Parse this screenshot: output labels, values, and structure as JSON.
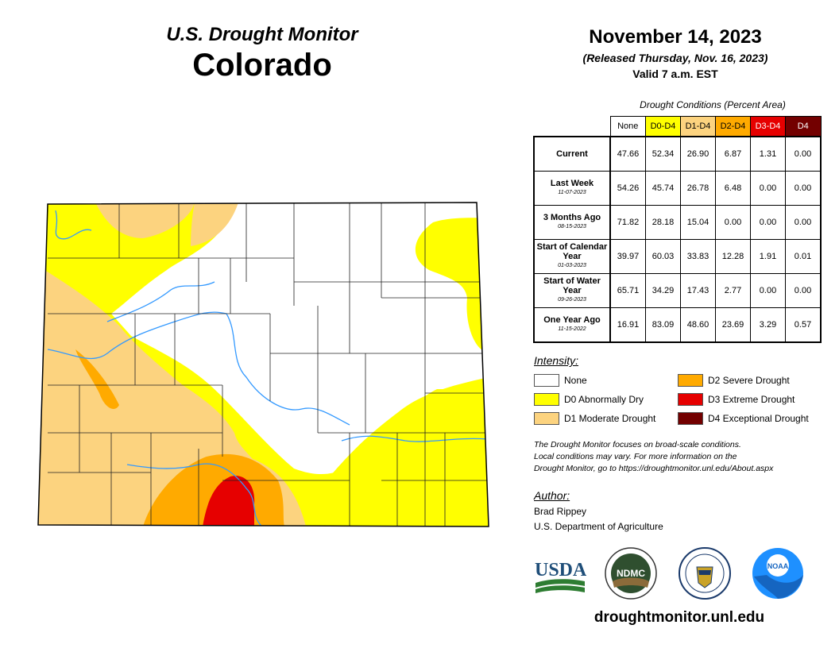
{
  "header": {
    "subtitle": "U.S. Drought Monitor",
    "state": "Colorado",
    "date": "November 14, 2023",
    "released": "(Released Thursday, Nov. 16, 2023)",
    "valid": "Valid 7 a.m. EST"
  },
  "table": {
    "caption": "Drought Conditions (Percent Area)",
    "columns": [
      "None",
      "D0-D4",
      "D1-D4",
      "D2-D4",
      "D3-D4",
      "D4"
    ],
    "column_colors": [
      "#ffffff",
      "#ffff00",
      "#fcd37f",
      "#ffaa00",
      "#e60000",
      "#730000"
    ],
    "column_text_colors": [
      "#000000",
      "#000000",
      "#000000",
      "#000000",
      "#ffffff",
      "#ffffff"
    ],
    "rows": [
      {
        "label": "Current",
        "date": "",
        "values": [
          "47.66",
          "52.34",
          "26.90",
          "6.87",
          "1.31",
          "0.00"
        ]
      },
      {
        "label": "Last Week",
        "date": "11-07-2023",
        "values": [
          "54.26",
          "45.74",
          "26.78",
          "6.48",
          "0.00",
          "0.00"
        ]
      },
      {
        "label": "3 Months Ago",
        "date": "08-15-2023",
        "values": [
          "71.82",
          "28.18",
          "15.04",
          "0.00",
          "0.00",
          "0.00"
        ]
      },
      {
        "label": "Start of Calendar Year",
        "date": "01-03-2023",
        "values": [
          "39.97",
          "60.03",
          "33.83",
          "12.28",
          "1.91",
          "0.01"
        ]
      },
      {
        "label": "Start of Water Year",
        "date": "09-26-2023",
        "values": [
          "65.71",
          "34.29",
          "17.43",
          "2.77",
          "0.00",
          "0.00"
        ]
      },
      {
        "label": "One Year Ago",
        "date": "11-15-2022",
        "values": [
          "16.91",
          "83.09",
          "48.60",
          "23.69",
          "3.29",
          "0.57"
        ]
      }
    ]
  },
  "legend": {
    "title": "Intensity:",
    "items": [
      {
        "label": "None",
        "color": "#ffffff"
      },
      {
        "label": "D0 Abnormally Dry",
        "color": "#ffff00"
      },
      {
        "label": "D1 Moderate Drought",
        "color": "#fcd37f"
      },
      {
        "label": "D2 Severe Drought",
        "color": "#ffaa00"
      },
      {
        "label": "D3 Extreme Drought",
        "color": "#e60000"
      },
      {
        "label": "D4 Exceptional Drought",
        "color": "#730000"
      }
    ]
  },
  "disclaimer": {
    "line1": "The Drought Monitor focuses on broad-scale conditions.",
    "line2": "Local conditions may vary. For more information on the",
    "line3": "Drought Monitor, go to https://droughtmonitor.unl.edu/About.aspx"
  },
  "author": {
    "title": "Author:",
    "name": "Brad Rippey",
    "org": "U.S. Department of Agriculture"
  },
  "logos": {
    "usda": "USDA",
    "ndmc": "NDMC",
    "noaa": "NOAA"
  },
  "website": "droughtmonitor.unl.edu"
}
